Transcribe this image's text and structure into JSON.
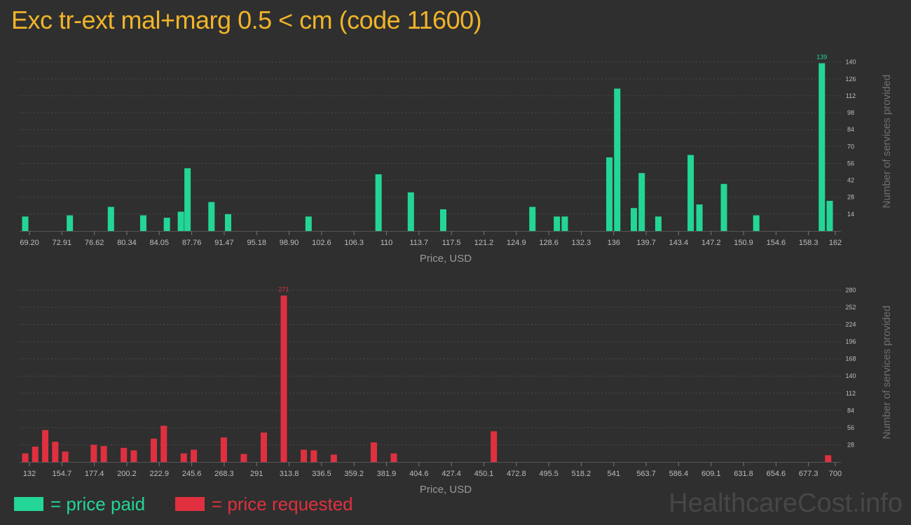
{
  "title": "Exc tr-ext mal+marg 0.5 < cm (code 11600)",
  "colors": {
    "paid": "#23d696",
    "requested": "#e0303f",
    "title": "#f0b429"
  },
  "legend": {
    "paid_label": "= price paid",
    "requested_label": "= price requested"
  },
  "watermark": "HealthcareCost.info",
  "chart_data": [
    {
      "type": "bar",
      "series_key": "paid",
      "xlabel": "Price, USD",
      "ylabel": "Number of services provided",
      "xlim": [
        69.2,
        162
      ],
      "ylim": [
        0,
        145
      ],
      "x_ticks": [
        "69.20",
        "72.91",
        "76.62",
        "80.34",
        "84.05",
        "87.76",
        "91.47",
        "95.18",
        "98.90",
        "102.6",
        "106.3",
        "110",
        "113.7",
        "117.5",
        "121.2",
        "124.9",
        "128.6",
        "132.3",
        "136",
        "139.7",
        "143.4",
        "147.2",
        "150.9",
        "154.6",
        "158.3",
        "162"
      ],
      "y_ticks": [
        14,
        28,
        42,
        56,
        70,
        84,
        98,
        112,
        126,
        140
      ],
      "max_label": "139",
      "bars": [
        {
          "x": 69.2,
          "y": 12
        },
        {
          "x": 74.3,
          "y": 13
        },
        {
          "x": 79.0,
          "y": 20
        },
        {
          "x": 82.7,
          "y": 13
        },
        {
          "x": 85.4,
          "y": 11
        },
        {
          "x": 87.0,
          "y": 16
        },
        {
          "x": 87.76,
          "y": 52
        },
        {
          "x": 90.5,
          "y": 24
        },
        {
          "x": 92.4,
          "y": 14
        },
        {
          "x": 101.6,
          "y": 12
        },
        {
          "x": 109.6,
          "y": 47
        },
        {
          "x": 113.3,
          "y": 32
        },
        {
          "x": 117.0,
          "y": 18
        },
        {
          "x": 127.2,
          "y": 20
        },
        {
          "x": 130.0,
          "y": 12
        },
        {
          "x": 130.9,
          "y": 12
        },
        {
          "x": 136.0,
          "y": 61
        },
        {
          "x": 136.9,
          "y": 118
        },
        {
          "x": 138.8,
          "y": 19
        },
        {
          "x": 139.7,
          "y": 48
        },
        {
          "x": 141.6,
          "y": 12
        },
        {
          "x": 145.3,
          "y": 63
        },
        {
          "x": 146.3,
          "y": 22
        },
        {
          "x": 149.1,
          "y": 39
        },
        {
          "x": 152.8,
          "y": 13
        },
        {
          "x": 160.3,
          "y": 139
        },
        {
          "x": 161.2,
          "y": 25
        }
      ]
    },
    {
      "type": "bar",
      "series_key": "requested",
      "xlabel": "Price, USD",
      "ylabel": "Number of services provided",
      "xlim": [
        132,
        700
      ],
      "ylim": [
        0,
        285
      ],
      "x_ticks": [
        "132",
        "154.7",
        "177.4",
        "200.2",
        "222.9",
        "245.6",
        "268.3",
        "291",
        "313.8",
        "336.5",
        "359.2",
        "381.9",
        "404.6",
        "427.4",
        "450.1",
        "472.8",
        "495.5",
        "518.2",
        "541",
        "563.7",
        "586.4",
        "609.1",
        "631.8",
        "654.6",
        "677.3",
        "700"
      ],
      "y_ticks": [
        28,
        56,
        84,
        112,
        140,
        168,
        196,
        224,
        252,
        280
      ],
      "max_label": "271",
      "bars": [
        {
          "x": 132.0,
          "y": 14
        },
        {
          "x": 139.0,
          "y": 25
        },
        {
          "x": 146.0,
          "y": 52
        },
        {
          "x": 153.0,
          "y": 33
        },
        {
          "x": 160.0,
          "y": 17
        },
        {
          "x": 180.0,
          "y": 28
        },
        {
          "x": 187.0,
          "y": 26
        },
        {
          "x": 201.0,
          "y": 23
        },
        {
          "x": 208.0,
          "y": 19
        },
        {
          "x": 222.0,
          "y": 38
        },
        {
          "x": 229.0,
          "y": 59
        },
        {
          "x": 243.0,
          "y": 14
        },
        {
          "x": 250.0,
          "y": 20
        },
        {
          "x": 271.0,
          "y": 40
        },
        {
          "x": 285.0,
          "y": 13
        },
        {
          "x": 299.0,
          "y": 48
        },
        {
          "x": 313.0,
          "y": 271
        },
        {
          "x": 327.0,
          "y": 20
        },
        {
          "x": 334.0,
          "y": 19
        },
        {
          "x": 348.0,
          "y": 12
        },
        {
          "x": 376.0,
          "y": 32
        },
        {
          "x": 390.0,
          "y": 14
        },
        {
          "x": 460.0,
          "y": 50
        },
        {
          "x": 694.0,
          "y": 11
        }
      ]
    }
  ]
}
